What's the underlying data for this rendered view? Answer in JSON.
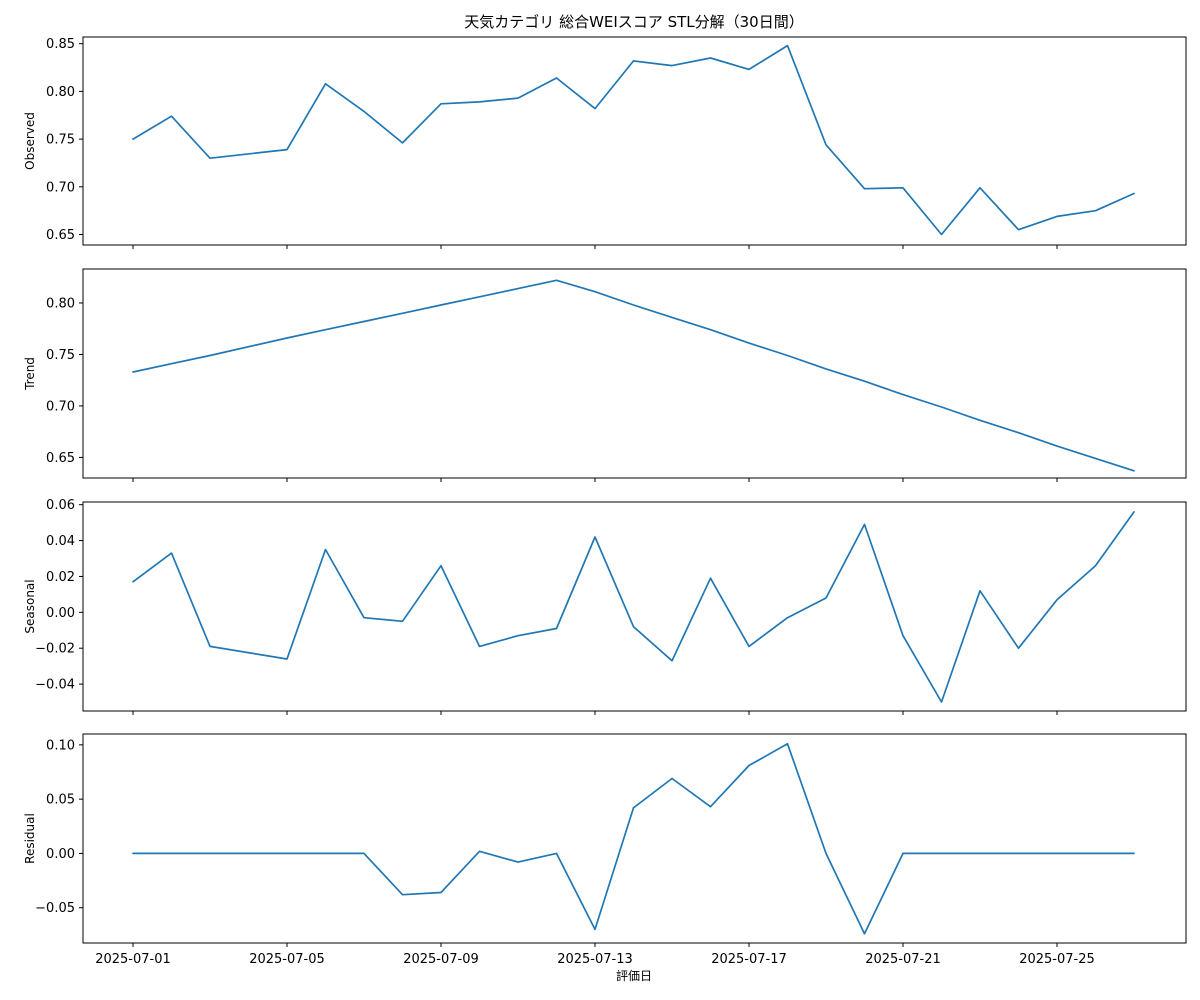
{
  "chart_data": {
    "type": "line",
    "title": "天気カテゴリ 総合WEIスコア STL分解（30日間）",
    "xlabel": "評価日",
    "x": [
      "2025-07-01",
      "2025-07-02",
      "2025-07-03",
      "2025-07-05",
      "2025-07-06",
      "2025-07-07",
      "2025-07-08",
      "2025-07-09",
      "2025-07-10",
      "2025-07-11",
      "2025-07-12",
      "2025-07-13",
      "2025-07-14",
      "2025-07-15",
      "2025-07-16",
      "2025-07-17",
      "2025-07-18",
      "2025-07-19",
      "2025-07-20",
      "2025-07-21",
      "2025-07-22",
      "2025-07-23",
      "2025-07-24",
      "2025-07-25",
      "2025-07-26",
      "2025-07-27"
    ],
    "x_ticks": [
      "2025-07-01",
      "2025-07-05",
      "2025-07-09",
      "2025-07-13",
      "2025-07-17",
      "2025-07-21",
      "2025-07-25"
    ],
    "panels": [
      {
        "name": "Observed",
        "ylabel": "Observed",
        "ylim": [
          0.639,
          0.857
        ],
        "yticks": [
          0.65,
          0.7,
          0.75,
          0.8,
          0.85
        ],
        "ytick_labels": [
          "0.65",
          "0.70",
          "0.75",
          "0.80",
          "0.85"
        ],
        "values": [
          0.75,
          0.774,
          0.73,
          0.739,
          0.808,
          0.779,
          0.746,
          0.787,
          0.789,
          0.793,
          0.814,
          0.782,
          0.832,
          0.827,
          0.835,
          0.823,
          0.848,
          0.744,
          0.698,
          0.699,
          0.65,
          0.699,
          0.655,
          0.669,
          0.675,
          0.693
        ]
      },
      {
        "name": "Trend",
        "ylabel": "Trend",
        "ylim": [
          0.63,
          0.833
        ],
        "yticks": [
          0.65,
          0.7,
          0.75,
          0.8
        ],
        "ytick_labels": [
          "0.65",
          "0.70",
          "0.75",
          "0.80"
        ],
        "values": [
          0.733,
          0.741,
          0.749,
          0.766,
          0.774,
          0.782,
          0.79,
          0.798,
          0.806,
          0.814,
          0.822,
          0.811,
          0.798,
          0.786,
          0.774,
          0.761,
          0.749,
          0.736,
          0.724,
          0.711,
          0.699,
          0.686,
          0.674,
          0.661,
          0.649,
          0.637
        ]
      },
      {
        "name": "Seasonal",
        "ylabel": "Seasonal",
        "ylim": [
          -0.055,
          0.0615
        ],
        "yticks": [
          -0.04,
          -0.02,
          0.0,
          0.02,
          0.04,
          0.06
        ],
        "ytick_labels": [
          "−0.04",
          "−0.02",
          "0.00",
          "0.02",
          "0.04",
          "0.06"
        ],
        "values": [
          0.017,
          0.033,
          -0.019,
          -0.026,
          0.035,
          -0.003,
          -0.005,
          0.026,
          -0.019,
          -0.013,
          -0.009,
          0.042,
          -0.008,
          -0.027,
          0.019,
          -0.019,
          -0.003,
          0.008,
          0.049,
          -0.013,
          -0.05,
          0.012,
          -0.02,
          0.007,
          0.026,
          0.056
        ]
      },
      {
        "name": "Residual",
        "ylabel": "Residual",
        "ylim": [
          -0.0825,
          0.11
        ],
        "yticks": [
          -0.05,
          0.0,
          0.05,
          0.1
        ],
        "ytick_labels": [
          "−0.05",
          "0.00",
          "0.05",
          "0.10"
        ],
        "values": [
          0.0,
          0.0,
          0.0,
          0.0,
          0.0,
          0.0,
          -0.038,
          -0.036,
          0.002,
          -0.008,
          0.0,
          -0.07,
          0.042,
          0.069,
          0.043,
          0.081,
          0.101,
          0.0,
          -0.074,
          0.0,
          0.0,
          0.0,
          0.0,
          0.0,
          0.0,
          0.0
        ]
      }
    ],
    "line_color": "#1f77b4",
    "grid": false,
    "legend": "none"
  }
}
